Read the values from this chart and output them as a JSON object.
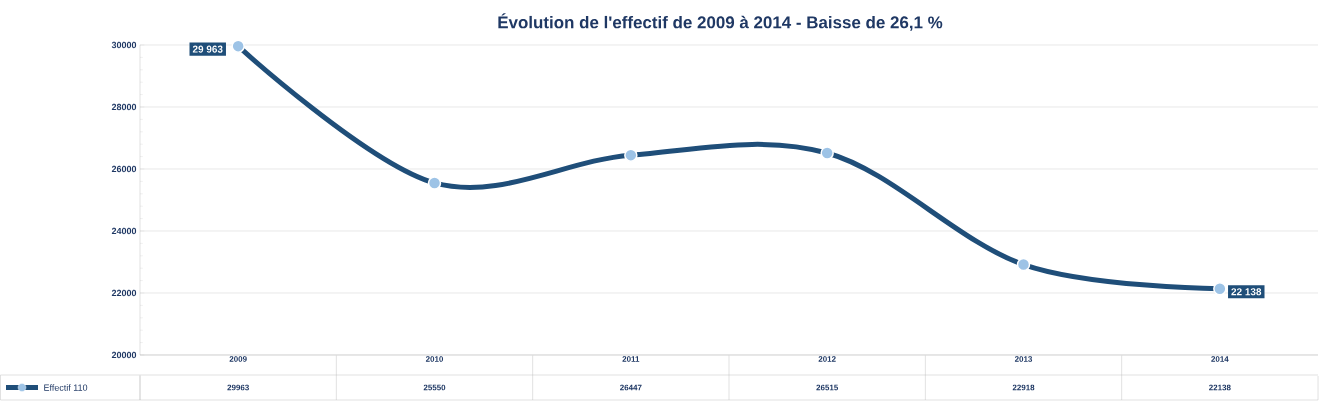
{
  "chart_data": {
    "type": "line",
    "title": "Évolution de l'effectif de 2009 à 2014 - Baisse de 26,1 %",
    "categories": [
      "2009",
      "2010",
      "2011",
      "2012",
      "2013",
      "2014"
    ],
    "series": [
      {
        "name": "Effectif 110",
        "color": "#1f4e79",
        "values": [
          29963,
          25550,
          26447,
          26515,
          22918,
          22138
        ],
        "value_labels": [
          "29963",
          "25550",
          "26447",
          "26515",
          "22918",
          "22138"
        ]
      }
    ],
    "annotations": [
      {
        "text": "29 963",
        "x": "2009",
        "y": 29963
      },
      {
        "text": "22 138",
        "x": "2014",
        "y": 22138
      }
    ],
    "ylim": [
      20000,
      30000
    ],
    "yticks": [
      20000,
      22000,
      24000,
      26000,
      28000,
      30000
    ],
    "grid": "y",
    "marker": "circle",
    "line_style": "solid"
  }
}
